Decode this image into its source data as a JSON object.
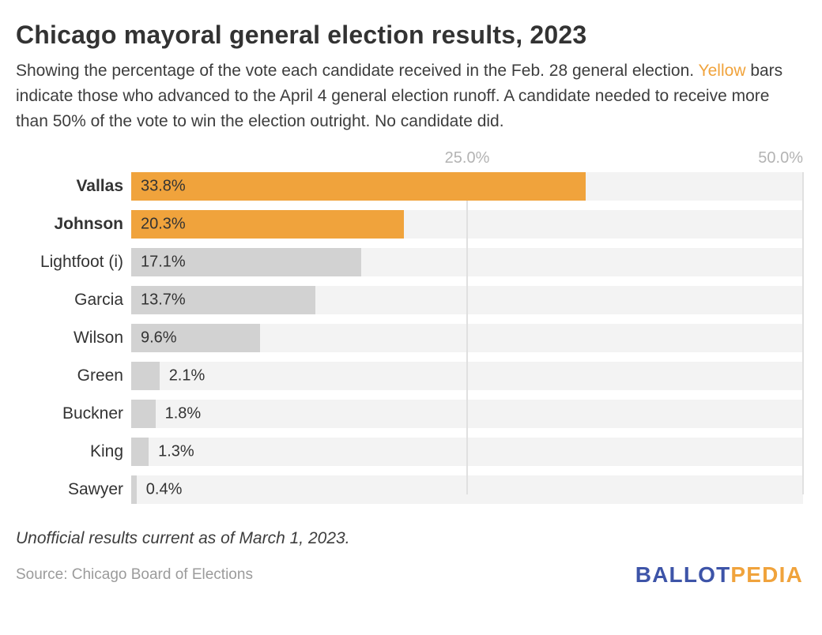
{
  "header": {
    "title": "Chicago mayoral general election results, 2023",
    "subtitle_part1": "Showing the percentage of the vote each candidate received in the Feb. 28 general election. ",
    "subtitle_highlight": "Yellow",
    "subtitle_part2": " bars indicate those who advanced to the April 4 general election runoff. A candidate needed to receive more than 50% of the vote to win the election outright. No candidate did."
  },
  "chart_data": {
    "type": "bar",
    "orientation": "horizontal",
    "categories": [
      "Vallas",
      "Johnson",
      "Lightfoot (i)",
      "Garcia",
      "Wilson",
      "Green",
      "Buckner",
      "King",
      "Sawyer"
    ],
    "values": [
      33.8,
      20.3,
      17.1,
      13.7,
      9.6,
      2.1,
      1.8,
      1.3,
      0.4
    ],
    "value_labels": [
      "33.8%",
      "20.3%",
      "17.1%",
      "13.7%",
      "9.6%",
      "2.1%",
      "1.8%",
      "1.3%",
      "0.4%"
    ],
    "highlighted": [
      true,
      true,
      false,
      false,
      false,
      false,
      false,
      false,
      false
    ],
    "bold_labels": [
      true,
      true,
      false,
      false,
      false,
      false,
      false,
      false,
      false
    ],
    "xlim": [
      0,
      50
    ],
    "x_ticks": [
      "25.0%",
      "50.0%"
    ],
    "x_tick_values": [
      25,
      50
    ],
    "legend": "none",
    "grid": "vertical gridlines at tick values, behind bars",
    "colors": {
      "highlight_bar": "#F0A33C",
      "default_bar": "#D2D2D2",
      "track": "#F3F3F3",
      "gridline": "#E0E0E0",
      "tick_label": "#B3B3B3"
    }
  },
  "footer": {
    "note": "Unofficial results current as of March 1, 2023.",
    "source": "Source: Chicago Board of Elections",
    "logo_part1": "BALLOT",
    "logo_part2": "PEDIA",
    "logo_color1": "#3D54A8",
    "logo_color2": "#F0A33C"
  }
}
